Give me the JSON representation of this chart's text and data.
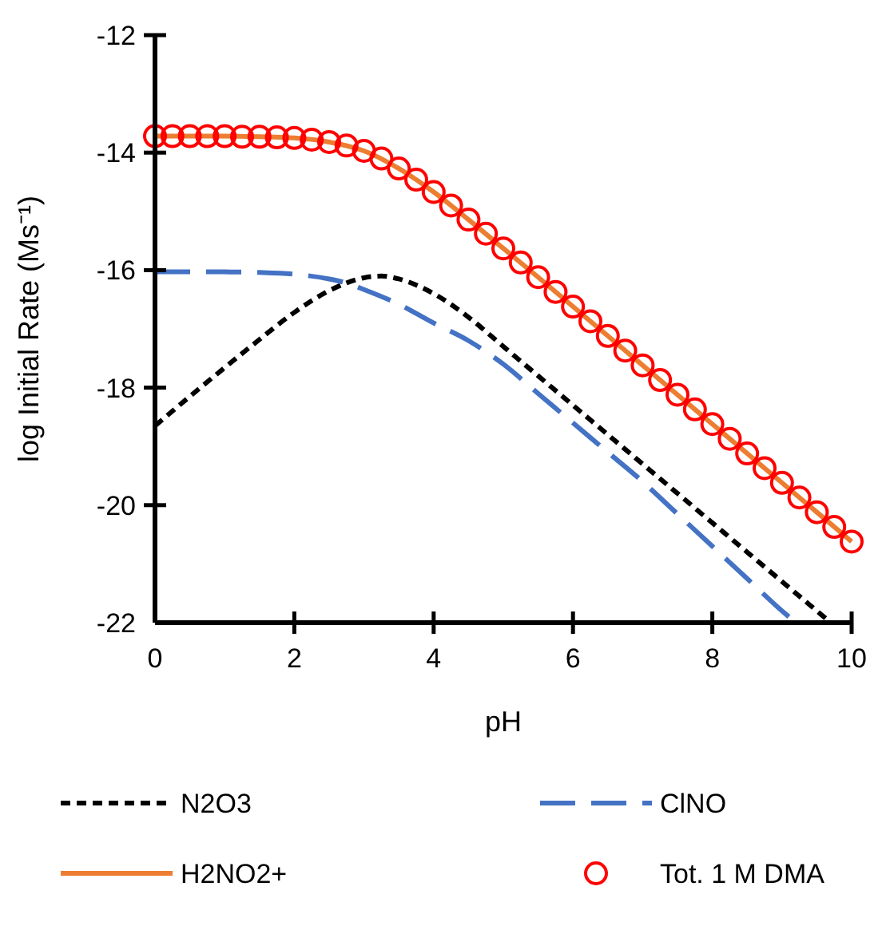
{
  "chart_data": {
    "type": "line",
    "xlabel": "pH",
    "ylabel": "log Initial Rate (Ms⁻¹)",
    "xlim": [
      0,
      10
    ],
    "ylim": [
      -22,
      -12
    ],
    "xticks": [
      0,
      2,
      4,
      6,
      8,
      10
    ],
    "yticks": [
      -22,
      -20,
      -18,
      -16,
      -14,
      -12
    ],
    "grid": false,
    "legend": "bottom",
    "series": [
      {
        "name": "N2O3",
        "color": "#000000",
        "line_style": "dashed",
        "x": [
          0,
          0.5,
          1,
          1.5,
          2,
          2.5,
          3,
          3.25,
          3.5,
          4,
          4.5,
          5,
          5.5,
          6,
          6.5,
          7,
          7.5,
          8,
          8.5,
          9,
          9.5,
          9.7
        ],
        "values": [
          -18.65,
          -18.15,
          -17.66,
          -17.18,
          -16.72,
          -16.35,
          -16.13,
          -16.1,
          -16.15,
          -16.4,
          -16.8,
          -17.3,
          -17.8,
          -18.3,
          -18.8,
          -19.3,
          -19.8,
          -20.3,
          -20.8,
          -21.3,
          -21.8,
          -22
        ]
      },
      {
        "name": "ClNO",
        "color": "#4472c4",
        "line_style": "longdash",
        "x": [
          0,
          1,
          1.5,
          2,
          2.5,
          2.75,
          3,
          3.5,
          4,
          4.5,
          5,
          5.5,
          6,
          6.5,
          7,
          7.5,
          8,
          8.5,
          9,
          9.2
        ],
        "values": [
          -16.03,
          -16.03,
          -16.04,
          -16.07,
          -16.15,
          -16.22,
          -16.33,
          -16.58,
          -16.9,
          -17.2,
          -17.6,
          -18.1,
          -18.6,
          -19.1,
          -19.6,
          -20.15,
          -20.7,
          -21.25,
          -21.8,
          -22
        ]
      },
      {
        "name": "H2NO2+",
        "color": "#ed7d31",
        "line_style": "solid",
        "x": [
          0,
          0.5,
          1,
          1.5,
          2,
          2.5,
          3,
          3.5,
          4,
          4.5,
          5,
          5.5,
          6,
          6.5,
          7,
          7.5,
          8,
          8.5,
          9,
          9.5,
          10
        ],
        "values": [
          -13.72,
          -13.72,
          -13.72,
          -13.73,
          -13.75,
          -13.82,
          -13.97,
          -14.27,
          -14.67,
          -15.14,
          -15.63,
          -16.12,
          -16.62,
          -17.12,
          -17.62,
          -18.12,
          -18.62,
          -19.12,
          -19.62,
          -20.12,
          -20.62
        ]
      },
      {
        "name": "Tot. 1 M DMA",
        "type": "scatter",
        "color": "#ff0000",
        "marker": "circle",
        "x": [
          0,
          0.25,
          0.5,
          0.75,
          1,
          1.25,
          1.5,
          1.75,
          2,
          2.25,
          2.5,
          2.75,
          3,
          3.25,
          3.5,
          3.75,
          4,
          4.25,
          4.5,
          4.75,
          5,
          5.25,
          5.5,
          5.75,
          6,
          6.25,
          6.5,
          6.75,
          7,
          7.25,
          7.5,
          7.75,
          8,
          8.25,
          8.5,
          8.75,
          9,
          9.25,
          9.5,
          9.75,
          10
        ],
        "values": [
          -13.72,
          -13.72,
          -13.72,
          -13.72,
          -13.72,
          -13.73,
          -13.73,
          -13.74,
          -13.75,
          -13.78,
          -13.82,
          -13.88,
          -13.97,
          -14.1,
          -14.27,
          -14.46,
          -14.67,
          -14.9,
          -15.14,
          -15.38,
          -15.63,
          -15.87,
          -16.12,
          -16.37,
          -16.62,
          -16.87,
          -17.12,
          -17.37,
          -17.62,
          -17.87,
          -18.12,
          -18.37,
          -18.62,
          -18.87,
          -19.12,
          -19.37,
          -19.62,
          -19.87,
          -20.12,
          -20.37,
          -20.62
        ]
      }
    ]
  }
}
